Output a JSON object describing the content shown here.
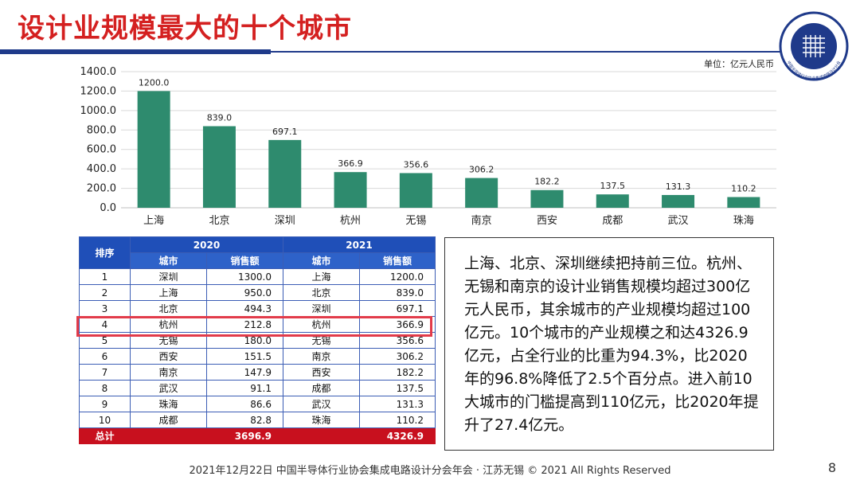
{
  "page": {
    "title": "设计业规模最大的十个城市",
    "unit_label": "单位：亿元人民币",
    "footer": "2021年12月22日 中国半导体行业协会集成电路设计分会年会 · 江苏无锡 © 2021 All Rights Reserved",
    "page_number": "8",
    "logo_text": "ICCAD",
    "logo_subtext": "中国半导体行业协会集成电路设计分会"
  },
  "colors": {
    "bar": "#2e8b6e",
    "title": "#d42020",
    "table_header": "#1f4fb8",
    "total_row": "#c8101e"
  },
  "chart_data": {
    "type": "bar",
    "categories": [
      "上海",
      "北京",
      "深圳",
      "杭州",
      "无锡",
      "南京",
      "西安",
      "成都",
      "武汉",
      "珠海"
    ],
    "values": [
      1200.0,
      839.0,
      697.1,
      366.9,
      356.6,
      306.2,
      182.2,
      137.5,
      131.3,
      110.2
    ],
    "ylim": [
      0,
      1400
    ],
    "yticks": [
      "0.0",
      "200.0",
      "400.0",
      "600.0",
      "800.0",
      "1000.0",
      "1200.0",
      "1400.0"
    ],
    "grid": true,
    "title": "",
    "xlabel": "",
    "ylabel": ""
  },
  "table": {
    "rank_header": "排序",
    "year1": "2020",
    "year2": "2021",
    "city_header": "城市",
    "sales_header": "销售额",
    "rows": [
      {
        "rank": "1",
        "city2020": "深圳",
        "sales2020": "1300.0",
        "city2021": "上海",
        "sales2021": "1200.0"
      },
      {
        "rank": "2",
        "city2020": "上海",
        "sales2020": "950.0",
        "city2021": "北京",
        "sales2021": "839.0"
      },
      {
        "rank": "3",
        "city2020": "北京",
        "sales2020": "494.3",
        "city2021": "深圳",
        "sales2021": "697.1"
      },
      {
        "rank": "4",
        "city2020": "杭州",
        "sales2020": "212.8",
        "city2021": "杭州",
        "sales2021": "366.9"
      },
      {
        "rank": "5",
        "city2020": "无锡",
        "sales2020": "180.0",
        "city2021": "无锡",
        "sales2021": "356.6"
      },
      {
        "rank": "6",
        "city2020": "西安",
        "sales2020": "151.5",
        "city2021": "南京",
        "sales2021": "306.2"
      },
      {
        "rank": "7",
        "city2020": "南京",
        "sales2020": "147.9",
        "city2021": "西安",
        "sales2021": "182.2"
      },
      {
        "rank": "8",
        "city2020": "武汉",
        "sales2020": "91.1",
        "city2021": "成都",
        "sales2021": "137.5"
      },
      {
        "rank": "9",
        "city2020": "珠海",
        "sales2020": "86.6",
        "city2021": "武汉",
        "sales2021": "131.3"
      },
      {
        "rank": "10",
        "city2020": "成都",
        "sales2020": "82.8",
        "city2021": "珠海",
        "sales2021": "110.2"
      }
    ],
    "total_label": "总计",
    "total2020": "3696.9",
    "total2021": "4326.9"
  },
  "summary_text": "上海、北京、深圳继续把持前三位。杭州、无锡和南京的设计业销售规模均超过300亿元人民币，其余城市的产业规模均超过100亿元。10个城市的产业规模之和达4326.9亿元，占全行业的比重为94.3%，比2020年的96.8%降低了2.5个百分点。进入前10大城市的门槛提高到110亿元，比2020年提升了27.4亿元。"
}
